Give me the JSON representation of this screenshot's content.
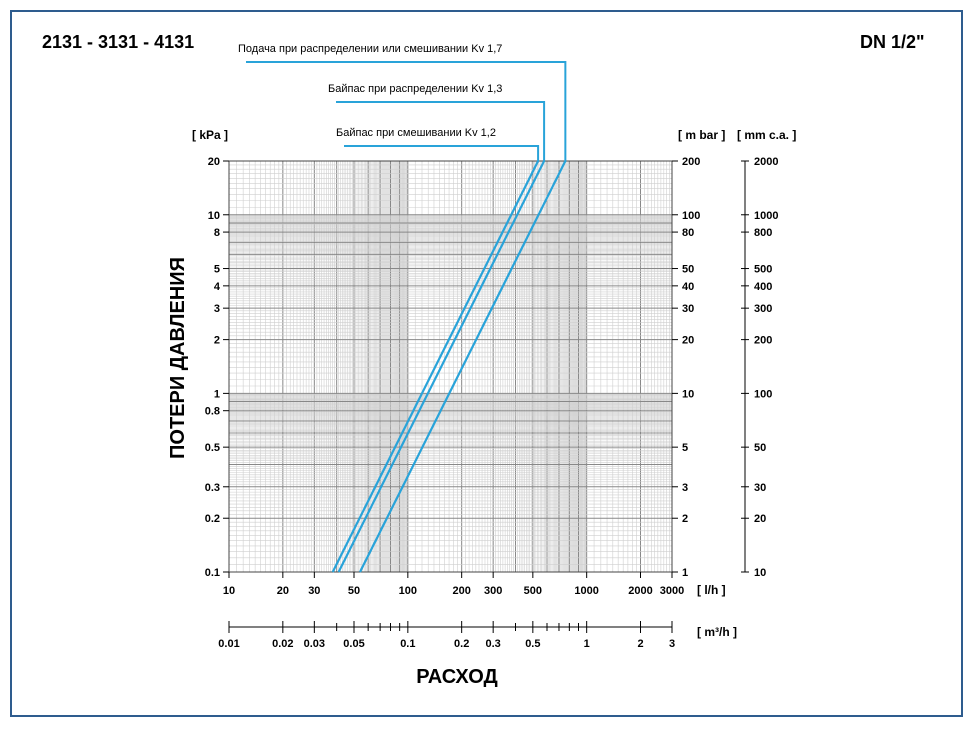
{
  "chart_data": {
    "type": "line",
    "title": "2131 - 3131 - 4131",
    "subtitle": "DN 1/2\"",
    "xlabel": "РАСХОД",
    "ylabel": "ПОТЕРИ ДАВЛЕНИЯ",
    "x_scale": "log",
    "y_scale": "log",
    "grid": true,
    "xlim": [
      10,
      3000
    ],
    "ylim": [
      0.1,
      20
    ],
    "units": {
      "y_left": "[ kPa ]",
      "y_right_1": "[ m bar ]",
      "y_right_2": "[ mm c.a. ]",
      "x_bottom": "[ l/h ]",
      "x_second": "[ m³/h ]"
    },
    "x_ticks": [
      "10",
      "20",
      "30",
      "50",
      "100",
      "200",
      "300",
      "500",
      "1000",
      "2000",
      "3000"
    ],
    "x2_ticks": [
      "0.01",
      "0.02",
      "0.03",
      "0.05",
      "0.1",
      "0.2",
      "0.3",
      "0.5",
      "1",
      "2",
      "3"
    ],
    "y_ticks": [
      "0.1",
      "0.2",
      "0.3",
      "0.5",
      "0.8",
      "1",
      "2",
      "3",
      "4",
      "5",
      "8",
      "10",
      "20"
    ],
    "y_right_ticks": [
      "1",
      "2",
      "3",
      "5",
      "10",
      "20",
      "30",
      "40",
      "50",
      "80",
      "100",
      "200"
    ],
    "y_right2_ticks": [
      "10",
      "20",
      "30",
      "50",
      "100",
      "200",
      "300",
      "400",
      "500",
      "800",
      "1000",
      "2000"
    ],
    "series": [
      {
        "name": "Байпас при смешивании Kv 1,2",
        "x": [
          38,
          535
        ],
        "y": [
          0.1,
          20
        ],
        "color": "#29a3d9"
      },
      {
        "name": "Байпас при распределении Kv 1,3",
        "x": [
          41,
          578
        ],
        "y": [
          0.1,
          20
        ],
        "color": "#29a3d9"
      },
      {
        "name": "Подача при распределении или смешивании Kv 1,7",
        "x": [
          54,
          760
        ],
        "y": [
          0.1,
          20
        ],
        "color": "#29a3d9"
      }
    ]
  }
}
